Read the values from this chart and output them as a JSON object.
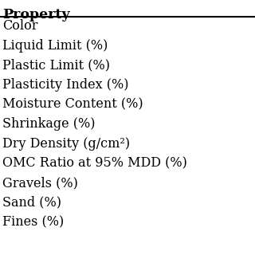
{
  "header": "Property",
  "rows": [
    "Color",
    "Liquid Limit (%)",
    "Plastic Limit (%)",
    "Plasticity Index (%)",
    "Moisture Content (%)",
    "Shrinkage (%)",
    "Dry Density (g/cm²)",
    "OMC Ratio at 95% MDD (%)",
    "Gravels (%)",
    "Sand (%)",
    "Fines (%)"
  ],
  "background_color": "#ffffff",
  "font_size": 11.5,
  "header_font_size": 12.5
}
